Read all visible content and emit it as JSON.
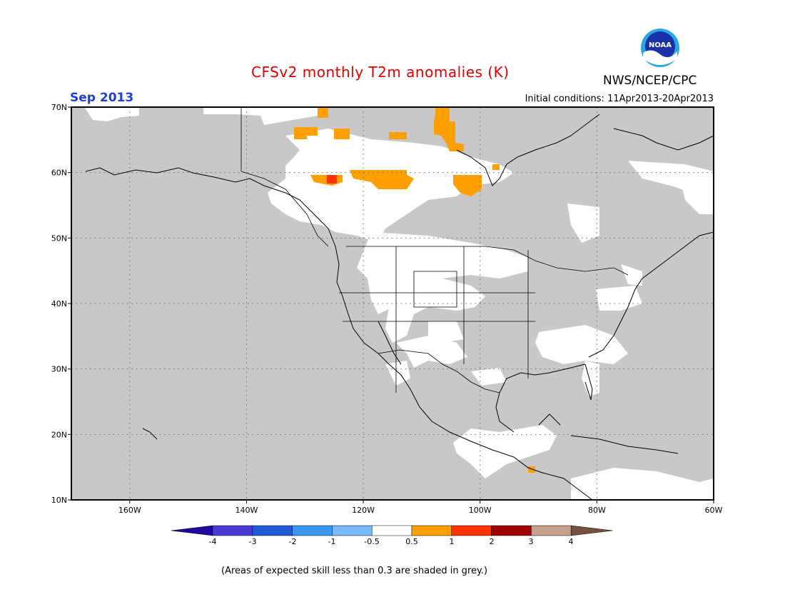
{
  "header": {
    "title": "CFSv2 monthly T2m anomalies (K)",
    "valid_month": "Sep 2013",
    "initial_conditions": "Initial conditions: 11Apr2013-20Apr2013",
    "agency": "NWS/NCEP/CPC",
    "logo_text": "NOAA"
  },
  "map": {
    "lat_labels": [
      "70N",
      "60N",
      "50N",
      "40N",
      "30N",
      "20N",
      "10N"
    ],
    "lon_labels": [
      "160W",
      "140W",
      "120W",
      "100W",
      "80W",
      "60W"
    ],
    "lat_range": [
      10,
      70
    ],
    "lon_range": [
      -170,
      -60
    ],
    "grid_lines": "dotted",
    "background_shading": "grey (low skill)"
  },
  "legend": {
    "bins": [
      {
        "color": "#1e0aa0"
      },
      {
        "color": "#4a3cd2"
      },
      {
        "color": "#1e5ad2"
      },
      {
        "color": "#3c96f0"
      },
      {
        "color": "#78b9fa"
      },
      {
        "color": "#ffffff"
      },
      {
        "color": "#ffa000"
      },
      {
        "color": "#ff3200"
      },
      {
        "color": "#a00000"
      },
      {
        "color": "#c8a08c"
      },
      {
        "color": "#785040"
      }
    ],
    "tick_labels": [
      "-4",
      "-3",
      "-2",
      "-1",
      "-0.5",
      "0.5",
      "1",
      "2",
      "3",
      "4"
    ]
  },
  "footer": {
    "skill_note": "(Areas of expected skill less than 0.3 are shaded in grey.)"
  },
  "colors": {
    "title": "#e00000",
    "valid_month": "#2040d0",
    "skill_grey": "#c8c8c8",
    "positive_05_1": "#ffa000",
    "positive_1_2": "#ff3200"
  }
}
